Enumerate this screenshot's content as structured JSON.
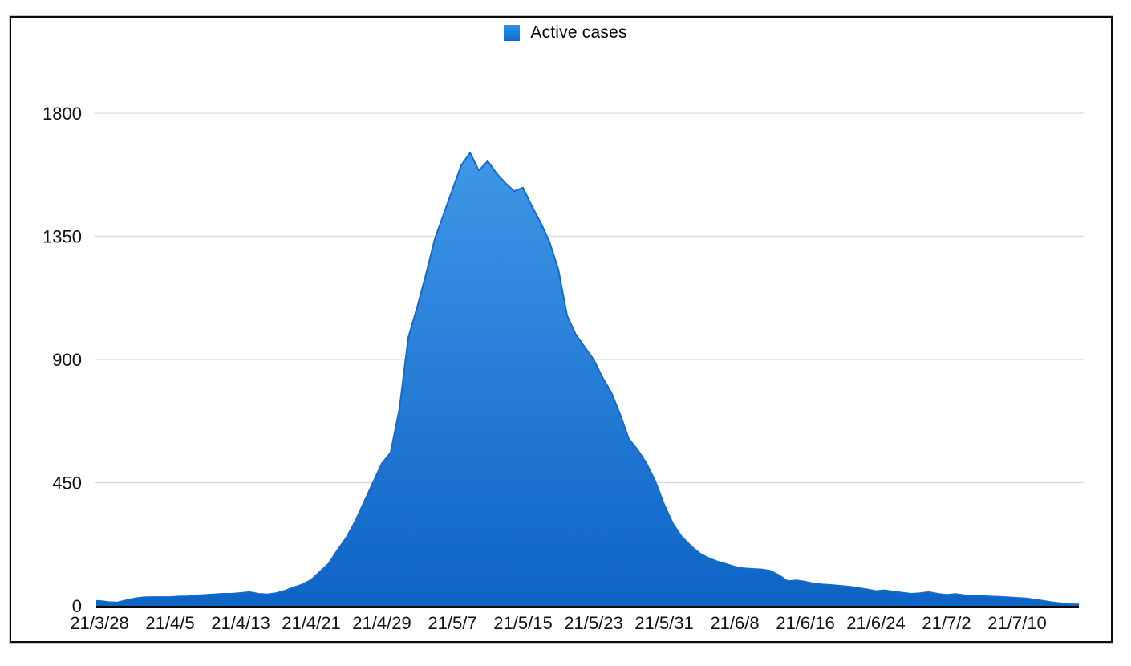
{
  "chart_data": {
    "type": "area",
    "legend": "Active cases",
    "legend_position": "top-center",
    "grid": "horizontal-only",
    "ylim": [
      0,
      1800
    ],
    "y_ticks": [
      0,
      450,
      900,
      1350,
      1800
    ],
    "x_tick_labels": [
      "21/3/28",
      "21/4/5",
      "21/4/13",
      "21/4/21",
      "21/4/29",
      "21/5/7",
      "21/5/15",
      "21/5/23",
      "21/5/31",
      "21/6/8",
      "21/6/16",
      "21/6/24",
      "21/7/2",
      "21/7/10"
    ],
    "x_tick_interval_days": 8,
    "dates": [
      "21/3/28",
      "21/3/29",
      "21/3/30",
      "21/3/31",
      "21/4/1",
      "21/4/2",
      "21/4/3",
      "21/4/4",
      "21/4/5",
      "21/4/6",
      "21/4/7",
      "21/4/8",
      "21/4/9",
      "21/4/10",
      "21/4/11",
      "21/4/12",
      "21/4/13",
      "21/4/14",
      "21/4/15",
      "21/4/16",
      "21/4/17",
      "21/4/18",
      "21/4/19",
      "21/4/20",
      "21/4/21",
      "21/4/22",
      "21/4/23",
      "21/4/24",
      "21/4/25",
      "21/4/26",
      "21/4/27",
      "21/4/28",
      "21/4/29",
      "21/4/30",
      "21/5/1",
      "21/5/2",
      "21/5/3",
      "21/5/4",
      "21/5/5",
      "21/5/6",
      "21/5/7",
      "21/5/8",
      "21/5/9",
      "21/5/10",
      "21/5/11",
      "21/5/12",
      "21/5/13",
      "21/5/14",
      "21/5/15",
      "21/5/16",
      "21/5/17",
      "21/5/18",
      "21/5/19",
      "21/5/20",
      "21/5/21",
      "21/5/22",
      "21/5/23",
      "21/5/24",
      "21/5/25",
      "21/5/26",
      "21/5/27",
      "21/5/28",
      "21/5/29",
      "21/5/30",
      "21/5/31",
      "21/6/1",
      "21/6/2",
      "21/6/3",
      "21/6/4",
      "21/6/5",
      "21/6/6",
      "21/6/7",
      "21/6/8",
      "21/6/9",
      "21/6/10",
      "21/6/11",
      "21/6/12",
      "21/6/13",
      "21/6/14",
      "21/6/15",
      "21/6/16",
      "21/6/17",
      "21/6/18",
      "21/6/19",
      "21/6/20",
      "21/6/21",
      "21/6/22",
      "21/6/23",
      "21/6/24",
      "21/6/25",
      "21/6/26",
      "21/6/27",
      "21/6/28",
      "21/6/29",
      "21/6/30",
      "21/7/1",
      "21/7/2",
      "21/7/3",
      "21/7/4",
      "21/7/5",
      "21/7/6",
      "21/7/7",
      "21/7/8",
      "21/7/9",
      "21/7/10",
      "21/7/11",
      "21/7/12",
      "21/7/13",
      "21/7/14",
      "21/7/15",
      "21/7/16",
      "21/7/17"
    ],
    "values": [
      18,
      14,
      12,
      20,
      27,
      31,
      32,
      32,
      32,
      34,
      35,
      38,
      40,
      42,
      44,
      44,
      47,
      50,
      44,
      42,
      46,
      55,
      67,
      78,
      95,
      125,
      155,
      205,
      250,
      310,
      380,
      450,
      520,
      560,
      720,
      980,
      1090,
      1210,
      1340,
      1430,
      1520,
      1610,
      1655,
      1590,
      1625,
      1580,
      1545,
      1515,
      1528,
      1460,
      1400,
      1330,
      1230,
      1060,
      990,
      945,
      900,
      835,
      780,
      700,
      610,
      570,
      520,
      455,
      370,
      300,
      252,
      220,
      192,
      175,
      162,
      153,
      143,
      137,
      135,
      133,
      128,
      112,
      90,
      93,
      88,
      81,
      78,
      76,
      73,
      70,
      65,
      60,
      54,
      57,
      52,
      48,
      44,
      46,
      50,
      44,
      40,
      43,
      39,
      37,
      36,
      34,
      33,
      31,
      29,
      27,
      23,
      18,
      13,
      9,
      6,
      5
    ],
    "peak": {
      "date": "21/5/9",
      "value": 1655
    },
    "colors": {
      "area_top": "#3f97e8",
      "area_bottom": "#0d64c5",
      "edge_stroke": "#1668c9",
      "baseline": "#0a0a0a",
      "gridline": "#d9d9d9",
      "tick_text": "#111111",
      "frame_border": "#0c0c0c"
    }
  }
}
